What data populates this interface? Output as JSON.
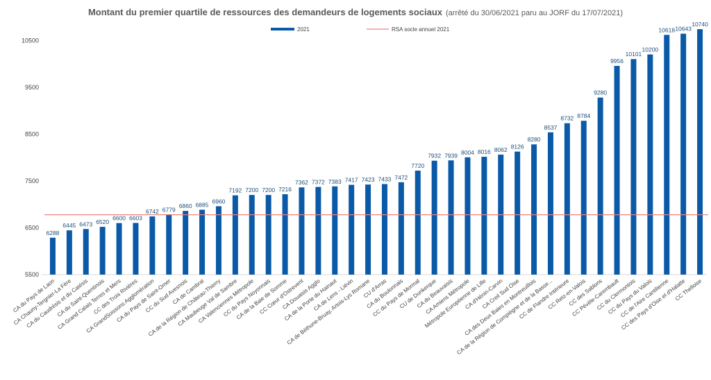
{
  "chart_data": {
    "type": "bar",
    "title": "Montant du premier quartile de ressources des demandeurs de logements sociaux",
    "subtitle": "(arrêté du 30/06/2021 paru au JORF du 17/07/2021)",
    "bar_color": "#0a5aa8",
    "reference_color": "#f08080",
    "grid": false,
    "legend_position": "top-center",
    "ylim": [
      5500,
      10800
    ],
    "yticks": [
      5500,
      6500,
      7500,
      8500,
      9500,
      10500
    ],
    "reference_line": {
      "name": "RSA socle annuel 2021",
      "value": 6779
    },
    "categories": [
      "CA du Pays de Laon",
      "CA Chauny-Tergnier-La Fère",
      "CA du Caudrésis et du Catésis",
      "CA du Saint-Quentinois",
      "CA Grand Calais Terres et Mers",
      "CC des Trois Rivières",
      "CA GrandSoissons Agglomération",
      "CA du Pays de Saint-Omer",
      "CC du Sud Avesnois",
      "CA de Cambrai",
      "CA de la Région de Château-Thierry",
      "CA Maubeuge Val de Sambre",
      "CA Valenciennes Métropole",
      "CC du Pays Noyonnais",
      "CA de la Baie de Somme",
      "CC Cœur d'Ostrevent",
      "CA Douaisis Agglo",
      "CA de la Porte du Hainaut",
      "CA de Lens - Liévin",
      "CA de Béthune-Bruay, Artois-Lys Romane",
      "CU d'Arras",
      "CA du Boulonnais",
      "CC du Pays de Mormal",
      "CU de Dunkerque",
      "CA du Beauvaisis",
      "CA Amiens Métropole",
      "Métropole Européenne de Lille",
      "CA d'Hénin-Carvin",
      "CA Creil Sud Oise",
      "CA des Deux Baies en Montreuillois",
      "CA de la Région de Compiègne et de la Basse...",
      "CC de Flandre Intérieure",
      "CC Retz-en-Valois",
      "CC des Sablons",
      "CC Pévèle-Carembault",
      "CC du Clermontois",
      "CC du Pays du Valois",
      "CC de l'Aire Cantilienne",
      "CC des Pays d'Oise et d'Halatte",
      "CC Thelloise"
    ],
    "series": [
      {
        "name": "2021",
        "values": [
          6288,
          6445,
          6473,
          6520,
          6600,
          6603,
          6742,
          6779,
          6860,
          6885,
          6960,
          7192,
          7200,
          7200,
          7216,
          7362,
          7372,
          7383,
          7417,
          7423,
          7433,
          7472,
          7720,
          7932,
          7939,
          8004,
          8016,
          8062,
          8126,
          8280,
          8537,
          8732,
          8784,
          9280,
          9956,
          10101,
          10200,
          10618,
          10643,
          10740
        ]
      }
    ]
  }
}
